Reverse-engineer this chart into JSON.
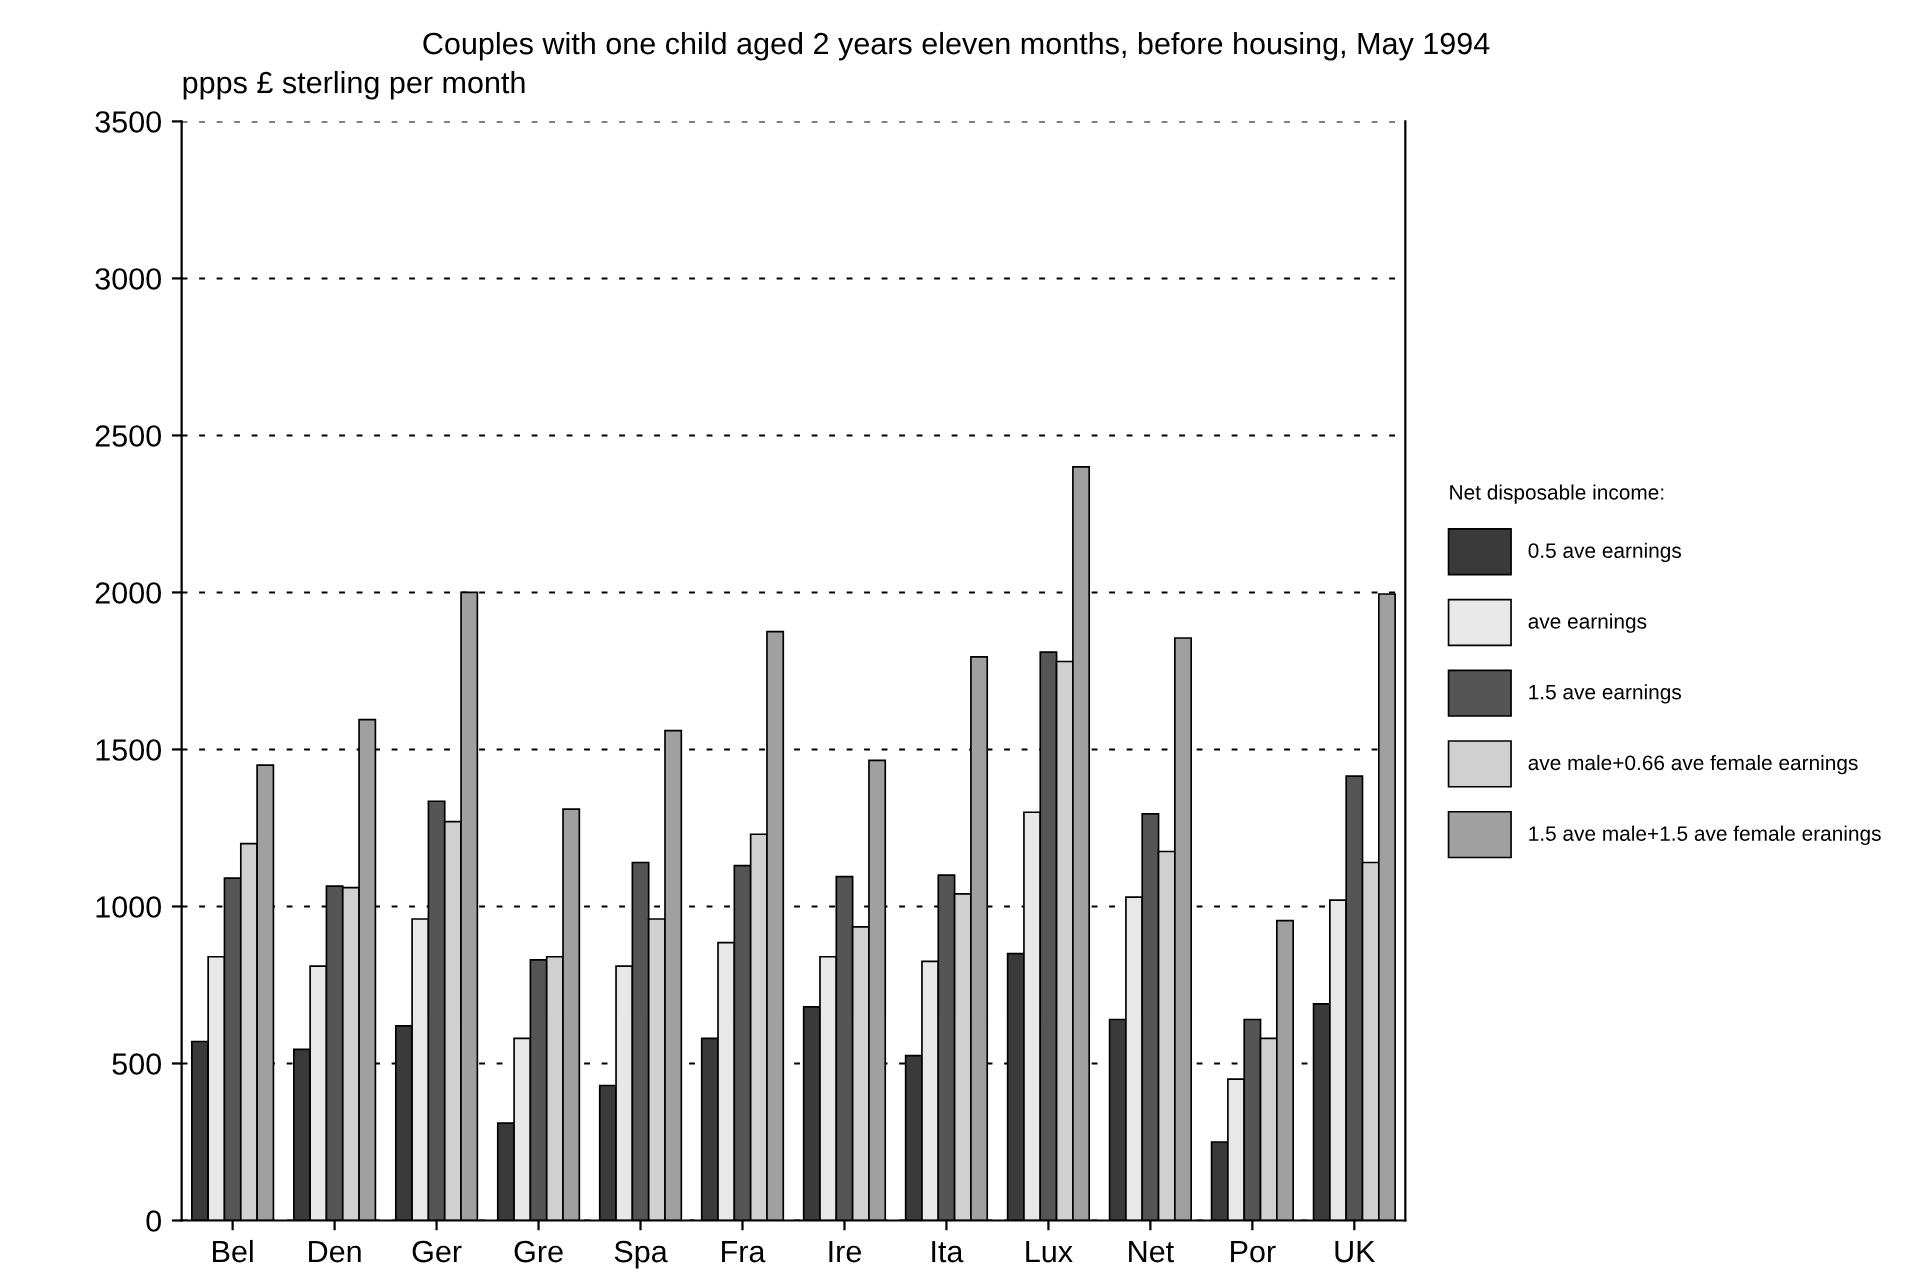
{
  "chart_data": {
    "type": "bar",
    "title": "Couples with one child aged 2 years eleven months, before housing, May 1994",
    "ylabel": "ppps £ sterling per month",
    "legend_title": "Net disposable income:",
    "categories": [
      "Bel",
      "Den",
      "Ger",
      "Gre",
      "Spa",
      "Fra",
      "Ire",
      "Ita",
      "Lux",
      "Net",
      "Por",
      "UK"
    ],
    "series": [
      {
        "name": "0.5 ave earnings",
        "color": "#3a3a3a",
        "values": [
          570,
          545,
          620,
          310,
          430,
          580,
          680,
          525,
          850,
          640,
          250,
          690
        ]
      },
      {
        "name": "ave earnings",
        "color": "#e8e8e8",
        "values": [
          840,
          810,
          960,
          580,
          810,
          885,
          840,
          825,
          1300,
          1030,
          450,
          1020
        ]
      },
      {
        "name": "1.5 ave earnings",
        "color": "#555555",
        "values": [
          1090,
          1065,
          1335,
          830,
          1140,
          1130,
          1095,
          1100,
          1810,
          1295,
          640,
          1415
        ]
      },
      {
        "name": "ave male+0.66 ave female earnings",
        "color": "#d0d0d0",
        "values": [
          1200,
          1060,
          1270,
          840,
          960,
          1230,
          935,
          1040,
          1780,
          1175,
          580,
          1140
        ]
      },
      {
        "name": "1.5 ave male+1.5 ave female eranings",
        "color": "#a0a0a0",
        "values": [
          1450,
          1595,
          2000,
          1310,
          1560,
          1875,
          1465,
          1795,
          2400,
          1855,
          955,
          1995
        ]
      }
    ],
    "ylim": [
      0,
      3500
    ],
    "yticks": [
      0,
      500,
      1000,
      1500,
      2000,
      2500,
      3000,
      3500
    ],
    "grid": "y",
    "legend": "right"
  }
}
